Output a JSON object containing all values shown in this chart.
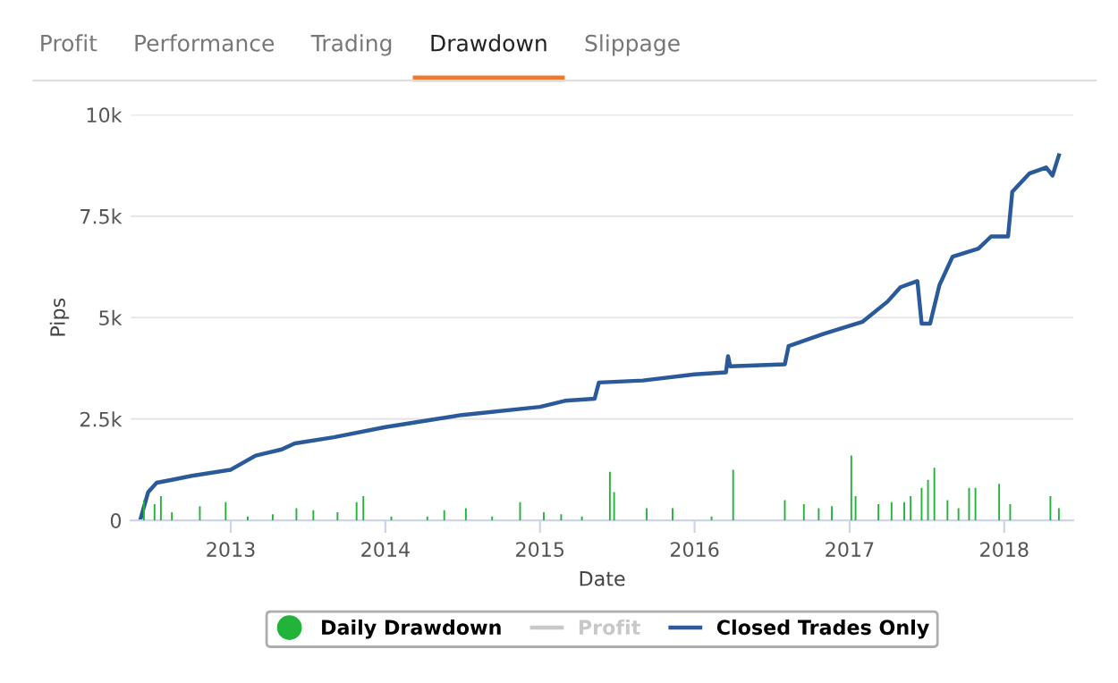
{
  "chart_data": {
    "type": "line",
    "xlabel": "Date",
    "ylabel": "Pips",
    "annotations": [
      "Profit",
      "Performance",
      "Trading",
      "Drawdown",
      "Slippage"
    ],
    "xlim": [
      "2012-05-10",
      "2018-06-13"
    ],
    "xticks": [
      {
        "value": "2013-01-01",
        "label": "2013"
      },
      {
        "value": "2014-01-01",
        "label": "2014"
      },
      {
        "value": "2015-01-01",
        "label": "2015"
      },
      {
        "value": "2016-01-01",
        "label": "2016"
      },
      {
        "value": "2017-01-01",
        "label": "2017"
      },
      {
        "value": "2018-01-01",
        "label": "2018"
      }
    ],
    "ylim": [
      0,
      10000
    ],
    "yticks": [
      {
        "value": 0,
        "label": "0"
      },
      {
        "value": 2500,
        "label": "2.5k"
      },
      {
        "value": 5000,
        "label": "5k"
      },
      {
        "value": 7500,
        "label": "7.5k"
      },
      {
        "value": 10000,
        "label": "10k"
      }
    ],
    "grid": "y",
    "legend": "bottom",
    "series": [
      {
        "name": "Daily Drawdown",
        "type": "bar",
        "color": "#22b33a",
        "x": [
          "2012-06-10",
          "2012-07-05",
          "2012-07-20",
          "2012-08-15",
          "2012-10-20",
          "2012-12-20",
          "2013-02-10",
          "2013-04-10",
          "2013-06-05",
          "2013-07-15",
          "2013-09-10",
          "2013-10-25",
          "2013-11-10",
          "2014-01-15",
          "2014-04-10",
          "2014-05-20",
          "2014-07-10",
          "2014-09-10",
          "2014-11-15",
          "2015-01-10",
          "2015-02-20",
          "2015-04-10",
          "2015-06-15",
          "2015-06-25",
          "2015-09-10",
          "2015-11-10",
          "2016-02-10",
          "2016-04-01",
          "2016-08-01",
          "2016-09-15",
          "2016-10-20",
          "2016-11-20",
          "2017-01-05",
          "2017-01-15",
          "2017-03-10",
          "2017-04-10",
          "2017-05-10",
          "2017-05-25",
          "2017-06-20",
          "2017-07-05",
          "2017-07-20",
          "2017-08-20",
          "2017-09-15",
          "2017-10-10",
          "2017-10-25",
          "2017-12-20",
          "2018-01-15",
          "2018-04-20",
          "2018-05-10"
        ],
        "values": [
          500,
          400,
          600,
          200,
          350,
          450,
          100,
          150,
          300,
          250,
          200,
          450,
          600,
          100,
          100,
          250,
          300,
          100,
          450,
          200,
          150,
          100,
          1200,
          700,
          300,
          300,
          100,
          1250,
          500,
          400,
          300,
          350,
          1600,
          600,
          400,
          450,
          450,
          600,
          800,
          1000,
          1300,
          500,
          300,
          800,
          800,
          900,
          400,
          600,
          300
        ]
      },
      {
        "name": "Profit",
        "color": "#c8c8c8"
      },
      {
        "name": "Closed Trades Only",
        "color": "#2a5a9a",
        "x": [
          "2012-06-01",
          "2012-06-20",
          "2012-07-10",
          "2012-08-15",
          "2012-10-01",
          "2013-01-01",
          "2013-03-01",
          "2013-05-01",
          "2013-06-01",
          "2013-09-01",
          "2014-01-01",
          "2014-04-01",
          "2014-07-01",
          "2015-01-01",
          "2015-03-01",
          "2015-05-10",
          "2015-05-20",
          "2015-09-01",
          "2016-01-01",
          "2016-03-15",
          "2016-03-20",
          "2016-03-25",
          "2016-08-01",
          "2016-08-10",
          "2016-11-01",
          "2017-02-01",
          "2017-04-01",
          "2017-05-01",
          "2017-06-10",
          "2017-06-20",
          "2017-07-10",
          "2017-08-01",
          "2017-09-01",
          "2017-11-01",
          "2017-12-01",
          "2018-01-10",
          "2018-01-20",
          "2018-03-01",
          "2018-04-10",
          "2018-04-25",
          "2018-05-10"
        ],
        "values": [
          0,
          700,
          930,
          1000,
          1100,
          1250,
          1600,
          1750,
          1900,
          2050,
          2300,
          2450,
          2600,
          2800,
          2950,
          3000,
          3400,
          3450,
          3600,
          3650,
          4050,
          3800,
          3850,
          4300,
          4600,
          4900,
          5400,
          5750,
          5900,
          4850,
          4850,
          5800,
          6500,
          6700,
          7000,
          7000,
          8100,
          8550,
          8700,
          8500,
          9000
        ]
      }
    ]
  }
}
